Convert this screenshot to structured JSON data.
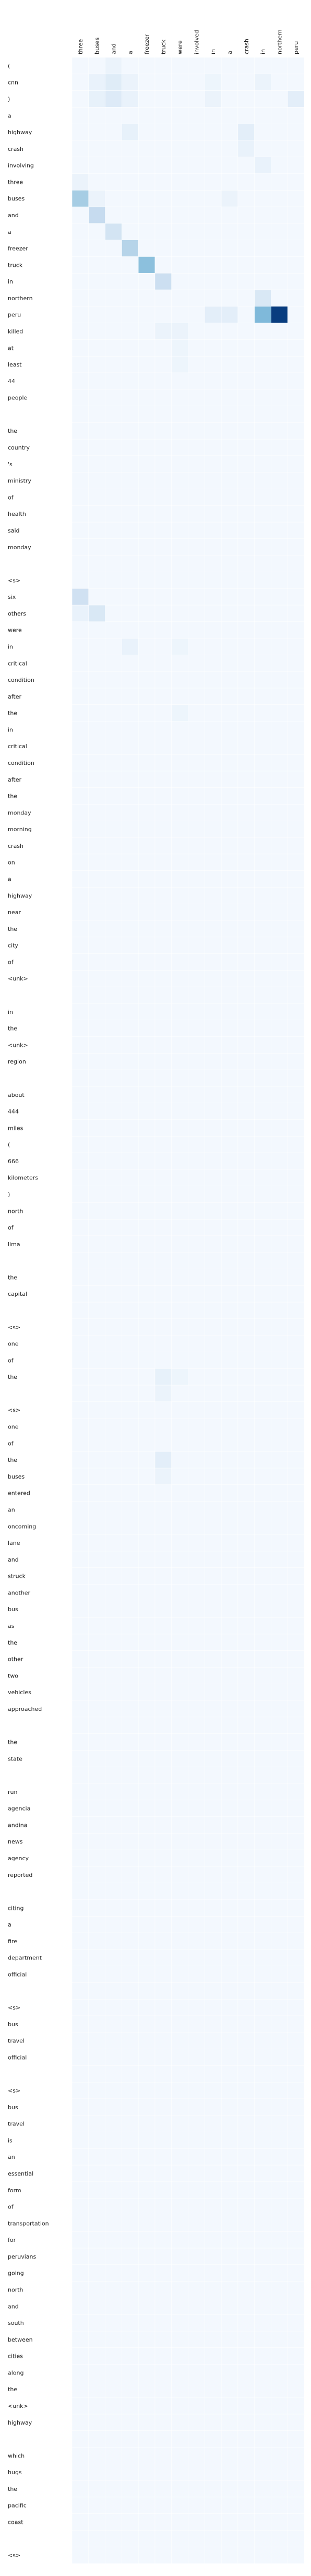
{
  "chart_data": {
    "type": "heatmap",
    "colormap": "Blues",
    "value_range": [
      0,
      1
    ],
    "x_labels": [
      "three",
      "buses",
      "and",
      "a",
      "freezer",
      "truck",
      "were",
      "involved",
      "in",
      "a",
      "crash",
      "in",
      "northern",
      "peru"
    ],
    "y_labels": [
      "(",
      "cnn",
      ")",
      "a",
      "highway",
      "crash",
      "involving",
      "three",
      "buses",
      "and",
      "a",
      "freezer",
      "truck",
      "in",
      "northern",
      "peru",
      "killed",
      "at",
      "least",
      "44",
      "people",
      "",
      "the",
      "country",
      "'s",
      "ministry",
      "of",
      "health",
      "said",
      "monday",
      "",
      "<s>",
      "six",
      "others",
      "were",
      "in",
      "critical",
      "condition",
      "after",
      "the",
      "in",
      "critical",
      "condition",
      "after",
      "the",
      "monday",
      "morning",
      "crash",
      "on",
      "a",
      "highway",
      "near",
      "the",
      "city",
      "of",
      "<unk>",
      "",
      "in",
      "the",
      "<unk>",
      "region",
      "",
      "about",
      "444",
      "miles",
      "(",
      "666",
      "kilometers",
      ")",
      "north",
      "of",
      "lima",
      "",
      "the",
      "capital",
      "",
      "<s>",
      "one",
      "of",
      "the",
      "",
      "<s>",
      "one",
      "of",
      "the",
      "buses",
      "entered",
      "an",
      "oncoming",
      "lane",
      "and",
      "struck",
      "another",
      "bus",
      "as",
      "the",
      "other",
      "two",
      "vehicles",
      "approached",
      "",
      "the",
      "state",
      "",
      "run",
      "agencia",
      "andina",
      "news",
      "agency",
      "reported",
      "",
      "citing",
      "a",
      "fire",
      "department",
      "official",
      "",
      "<s>",
      "bus",
      "travel",
      "official",
      "",
      "<s>",
      "bus",
      "travel",
      "is",
      "an",
      "essential",
      "form",
      "of",
      "transportation",
      "for",
      "peruvians",
      "going",
      "north",
      "and",
      "south",
      "between",
      "cities",
      "along",
      "the",
      "<unk>",
      "highway",
      "",
      "which",
      "hugs",
      "the",
      "pacific",
      "coast",
      "",
      "<s>"
    ],
    "highlights": [
      {
        "row": 0,
        "col": 2,
        "value": 0.06
      },
      {
        "row": 1,
        "col": 1,
        "value": 0.07
      },
      {
        "row": 1,
        "col": 2,
        "value": 0.12
      },
      {
        "row": 1,
        "col": 3,
        "value": 0.06
      },
      {
        "row": 1,
        "col": 8,
        "value": 0.05
      },
      {
        "row": 1,
        "col": 11,
        "value": 0.06
      },
      {
        "row": 2,
        "col": 1,
        "value": 0.08
      },
      {
        "row": 2,
        "col": 2,
        "value": 0.13
      },
      {
        "row": 2,
        "col": 3,
        "value": 0.07
      },
      {
        "row": 2,
        "col": 8,
        "value": 0.06
      },
      {
        "row": 2,
        "col": 13,
        "value": 0.1
      },
      {
        "row": 4,
        "col": 3,
        "value": 0.08
      },
      {
        "row": 4,
        "col": 10,
        "value": 0.1
      },
      {
        "row": 5,
        "col": 10,
        "value": 0.07
      },
      {
        "row": 6,
        "col": 11,
        "value": 0.07
      },
      {
        "row": 7,
        "col": 0,
        "value": 0.06
      },
      {
        "row": 8,
        "col": 0,
        "value": 0.35
      },
      {
        "row": 8,
        "col": 1,
        "value": 0.06
      },
      {
        "row": 8,
        "col": 9,
        "value": 0.06
      },
      {
        "row": 9,
        "col": 1,
        "value": 0.25
      },
      {
        "row": 10,
        "col": 2,
        "value": 0.18
      },
      {
        "row": 11,
        "col": 3,
        "value": 0.3
      },
      {
        "row": 12,
        "col": 4,
        "value": 0.42
      },
      {
        "row": 13,
        "col": 5,
        "value": 0.22
      },
      {
        "row": 14,
        "col": 11,
        "value": 0.15
      },
      {
        "row": 15,
        "col": 8,
        "value": 0.1
      },
      {
        "row": 15,
        "col": 9,
        "value": 0.1
      },
      {
        "row": 15,
        "col": 11,
        "value": 0.45
      },
      {
        "row": 15,
        "col": 12,
        "value": 0.95
      },
      {
        "row": 16,
        "col": 5,
        "value": 0.06
      },
      {
        "row": 16,
        "col": 6,
        "value": 0.06
      },
      {
        "row": 17,
        "col": 6,
        "value": 0.05
      },
      {
        "row": 18,
        "col": 6,
        "value": 0.05
      },
      {
        "row": 32,
        "col": 0,
        "value": 0.2
      },
      {
        "row": 33,
        "col": 0,
        "value": 0.07
      },
      {
        "row": 33,
        "col": 1,
        "value": 0.15
      },
      {
        "row": 35,
        "col": 3,
        "value": 0.07
      },
      {
        "row": 35,
        "col": 6,
        "value": 0.05
      },
      {
        "row": 39,
        "col": 6,
        "value": 0.05
      },
      {
        "row": 79,
        "col": 5,
        "value": 0.08
      },
      {
        "row": 79,
        "col": 6,
        "value": 0.05
      },
      {
        "row": 80,
        "col": 5,
        "value": 0.06
      },
      {
        "row": 84,
        "col": 5,
        "value": 0.1
      },
      {
        "row": 85,
        "col": 5,
        "value": 0.06
      }
    ]
  }
}
